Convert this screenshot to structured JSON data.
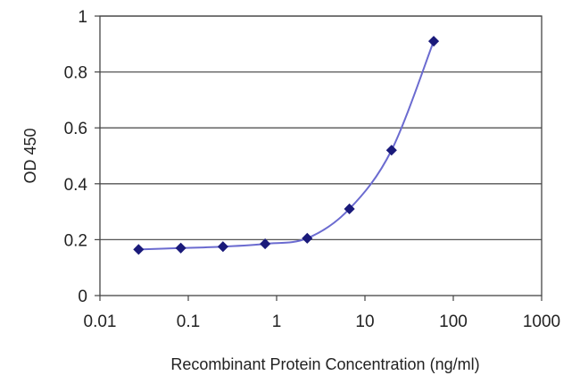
{
  "chart_data": {
    "type": "scatter",
    "title": "",
    "xlabel": "Recombinant Protein Concentration (ng/ml)",
    "ylabel": "OD 450",
    "x_scale": "log",
    "xlim": [
      0.01,
      1000
    ],
    "ylim": [
      0,
      1
    ],
    "x_ticks": [
      0.01,
      0.1,
      1,
      10,
      100,
      1000
    ],
    "x_tick_labels": [
      "0.01",
      "0.1",
      "1",
      "10",
      "100",
      "1000"
    ],
    "y_ticks": [
      0,
      0.2,
      0.4,
      0.6,
      0.8,
      1
    ],
    "y_tick_labels": [
      "0",
      "0.2",
      "0.4",
      "0.6",
      "0.8",
      "1"
    ],
    "grid": "horizontal",
    "legend": "none",
    "series": [
      {
        "x": [
          0.0274,
          0.0823,
          0.247,
          0.741,
          2.22,
          6.67,
          20,
          60
        ],
        "y": [
          0.165,
          0.17,
          0.175,
          0.185,
          0.205,
          0.31,
          0.52,
          0.91
        ],
        "marker": "diamond",
        "color": "#1a1a7a",
        "line_color": "#6b6bd0"
      }
    ]
  }
}
